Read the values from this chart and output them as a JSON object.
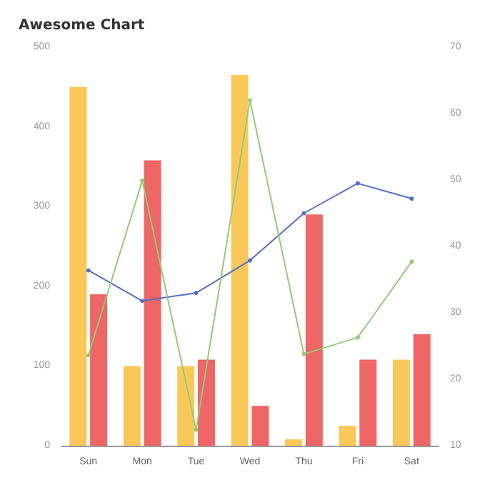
{
  "chart_data": {
    "type": "bar",
    "title": "Awesome Chart",
    "categories": [
      "Sun",
      "Mon",
      "Tue",
      "Wed",
      "Thu",
      "Fri",
      "Sat"
    ],
    "series": [
      {
        "color": "#fac858",
        "values": [
          450,
          100,
          100,
          465,
          8,
          25,
          108
        ]
      },
      {
        "color": "#ee6666",
        "values": [
          190,
          358,
          108,
          50,
          290,
          108,
          140
        ]
      },
      {
        "type": "line",
        "axis": "y2",
        "color": "#5470c6",
        "values": [
          36.4,
          31.8,
          33,
          37.9,
          45,
          49.5,
          47.2
        ]
      },
      {
        "type": "line",
        "axis": "y2",
        "color": "#91cc75",
        "values": [
          23.6,
          49.9,
          12.4,
          62,
          23.8,
          26.3,
          37.7
        ]
      }
    ],
    "ylim": [
      0,
      500
    ],
    "yticks": [
      0,
      100,
      200,
      300,
      400,
      500
    ],
    "y2lim": [
      10,
      70
    ],
    "y2ticks": [
      10,
      20,
      30,
      40,
      50,
      60,
      70
    ],
    "grid": false,
    "marker": "circle"
  }
}
